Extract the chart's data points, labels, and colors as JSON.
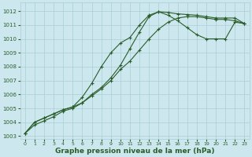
{
  "bg_color": "#cce8ee",
  "grid_color": "#aacdd4",
  "line_color": "#2a5c2a",
  "xlabel": "Graphe pression niveau de la mer (hPa)",
  "xlim": [
    -0.5,
    23.5
  ],
  "ylim": [
    1002.8,
    1012.6
  ],
  "yticks": [
    1003,
    1004,
    1005,
    1006,
    1007,
    1008,
    1009,
    1010,
    1011,
    1012
  ],
  "xticks": [
    0,
    1,
    2,
    3,
    4,
    5,
    6,
    7,
    8,
    9,
    10,
    11,
    12,
    13,
    14,
    15,
    16,
    17,
    18,
    19,
    20,
    21,
    22,
    23
  ],
  "series": [
    {
      "x": [
        0,
        1,
        2,
        3,
        4,
        5,
        6,
        7,
        8,
        9,
        10,
        11,
        12,
        13,
        14,
        15,
        16,
        17,
        18,
        19,
        20,
        21,
        22,
        23
      ],
      "y": [
        1003.2,
        1004.0,
        1004.3,
        1004.6,
        1004.9,
        1005.1,
        1005.4,
        1006.0,
        1006.5,
        1007.2,
        1008.1,
        1009.3,
        1010.5,
        1011.6,
        1011.95,
        1011.9,
        1011.8,
        1011.75,
        1011.7,
        1011.6,
        1011.5,
        1011.5,
        1011.5,
        1011.1
      ]
    },
    {
      "x": [
        0,
        1,
        2,
        3,
        4,
        5,
        6,
        7,
        8,
        9,
        10,
        11,
        12,
        13,
        14,
        15,
        16,
        17,
        18,
        19,
        20,
        21,
        22,
        23
      ],
      "y": [
        1003.2,
        1004.0,
        1004.3,
        1004.6,
        1004.9,
        1005.1,
        1005.8,
        1006.8,
        1008.0,
        1009.0,
        1009.7,
        1010.1,
        1011.0,
        1011.7,
        1011.95,
        1011.7,
        1011.3,
        1010.8,
        1010.3,
        1010.0,
        1010.0,
        1010.0,
        1011.2,
        1011.1
      ]
    },
    {
      "x": [
        0,
        1,
        2,
        3,
        4,
        5,
        6,
        7,
        8,
        9,
        10,
        11,
        12,
        13,
        14,
        15,
        16,
        17,
        18,
        19,
        20,
        21,
        22,
        23
      ],
      "y": [
        1003.2,
        1003.8,
        1004.1,
        1004.4,
        1004.8,
        1005.0,
        1005.4,
        1005.9,
        1006.4,
        1007.0,
        1007.8,
        1008.4,
        1009.2,
        1010.0,
        1010.7,
        1011.2,
        1011.5,
        1011.6,
        1011.6,
        1011.5,
        1011.4,
        1011.4,
        1011.3,
        1011.1
      ]
    }
  ]
}
